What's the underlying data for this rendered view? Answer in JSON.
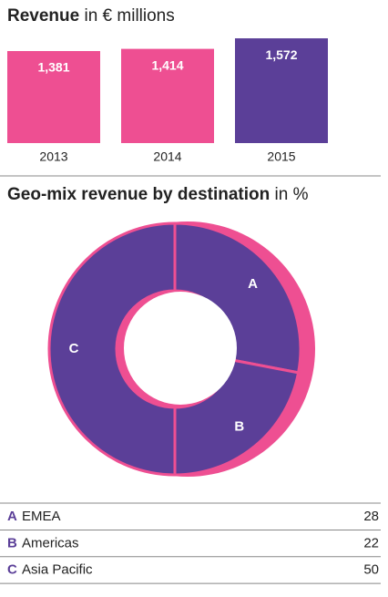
{
  "chart_data": [
    {
      "type": "bar",
      "title": "Revenue",
      "unit": "in € millions",
      "categories": [
        "2013",
        "2014",
        "2015"
      ],
      "values": [
        1381,
        1414,
        1572
      ],
      "value_labels": [
        "1,381",
        "1,414",
        "1,572"
      ],
      "colors": [
        "#ee4f92",
        "#ee4f92",
        "#5b3f98"
      ],
      "ylim": [
        0,
        1600
      ]
    },
    {
      "type": "pie",
      "title": "Geo-mix revenue by destination",
      "unit": "in %",
      "categories": [
        "A",
        "B",
        "C"
      ],
      "labels": [
        "EMEA",
        "Americas",
        "Asia Pacific"
      ],
      "values": [
        28,
        22,
        50
      ],
      "color": "#5b3f98",
      "ring_color": "#ee4f92"
    }
  ]
}
